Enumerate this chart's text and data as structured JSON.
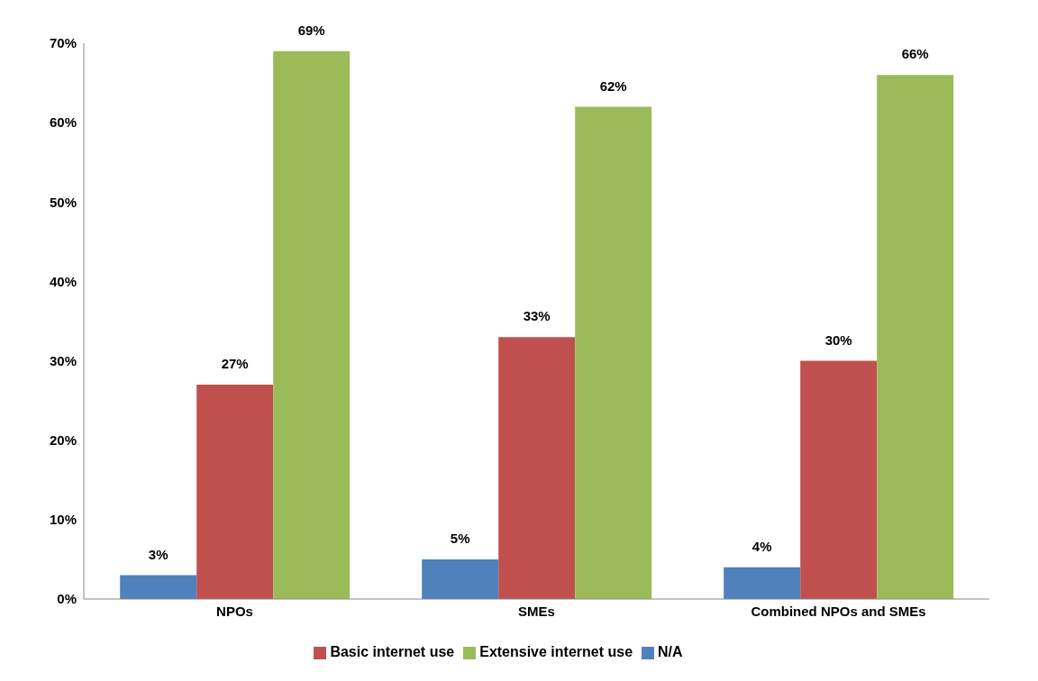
{
  "chart_data": {
    "type": "bar",
    "categories": [
      "NPOs",
      "SMEs",
      "Combined NPOs and SMEs"
    ],
    "series": [
      {
        "name": "N/A",
        "color": "#4f81bd",
        "values": [
          3,
          5,
          4
        ],
        "value_labels": [
          "3%",
          "5%",
          "4%"
        ]
      },
      {
        "name": "Basic internet use",
        "color": "#c0504d",
        "values": [
          27,
          33,
          30
        ],
        "value_labels": [
          "27%",
          "33%",
          "30%"
        ]
      },
      {
        "name": "Extensive internet use",
        "color": "#9bbb59",
        "values": [
          69,
          62,
          66
        ],
        "value_labels": [
          "69%",
          "62%",
          "66%"
        ]
      }
    ],
    "ylim": [
      0,
      70
    ],
    "yticks": [
      {
        "value": 0,
        "label": "0%"
      },
      {
        "value": 10,
        "label": "10%"
      },
      {
        "value": 20,
        "label": "20%"
      },
      {
        "value": 30,
        "label": "30%"
      },
      {
        "value": 40,
        "label": "40%"
      },
      {
        "value": 50,
        "label": "50%"
      },
      {
        "value": 60,
        "label": "60%"
      },
      {
        "value": 70,
        "label": "70%"
      }
    ],
    "legend": "bottom",
    "grid": false
  }
}
